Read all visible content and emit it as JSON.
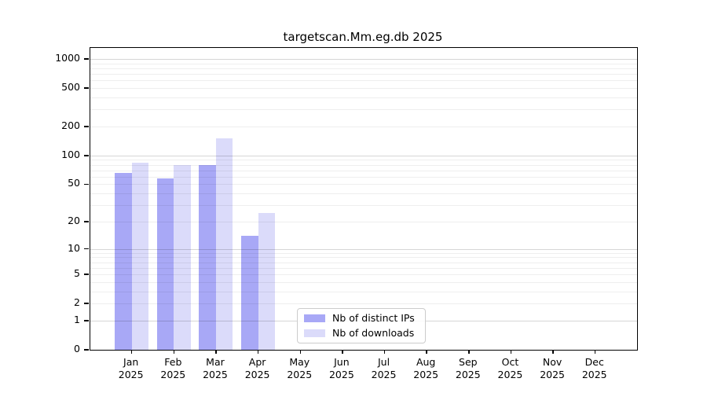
{
  "chart_data": {
    "type": "bar",
    "title": "targetscan.Mm.eg.db 2025",
    "categories": [
      "Jan",
      "Feb",
      "Mar",
      "Apr",
      "May",
      "Jun",
      "Jul",
      "Aug",
      "Sep",
      "Oct",
      "Nov",
      "Dec"
    ],
    "category_year": "2025",
    "series": [
      {
        "name": "Nb of distinct IPs",
        "color": "#a8a8f6",
        "values": [
          66,
          58,
          80,
          14,
          0,
          0,
          0,
          0,
          0,
          0,
          0,
          0
        ]
      },
      {
        "name": "Nb of downloads",
        "color": "#dbdbfa",
        "values": [
          84,
          80,
          150,
          25,
          0,
          0,
          0,
          0,
          0,
          0,
          0,
          0
        ]
      }
    ],
    "yscale": "log1p",
    "yticks": [
      0,
      1,
      2,
      5,
      10,
      20,
      50,
      100,
      200,
      500,
      1000
    ],
    "ylim": [
      0,
      1300
    ],
    "grid": "on",
    "legend_position": "lower-center-inside",
    "colors": {
      "axis": "#000000",
      "text": "#000000",
      "major_grid": "rgba(0,0,0,0.16)",
      "minor_grid": "rgba(0,0,0,0.065)",
      "legend_border": "#cccccc"
    }
  }
}
